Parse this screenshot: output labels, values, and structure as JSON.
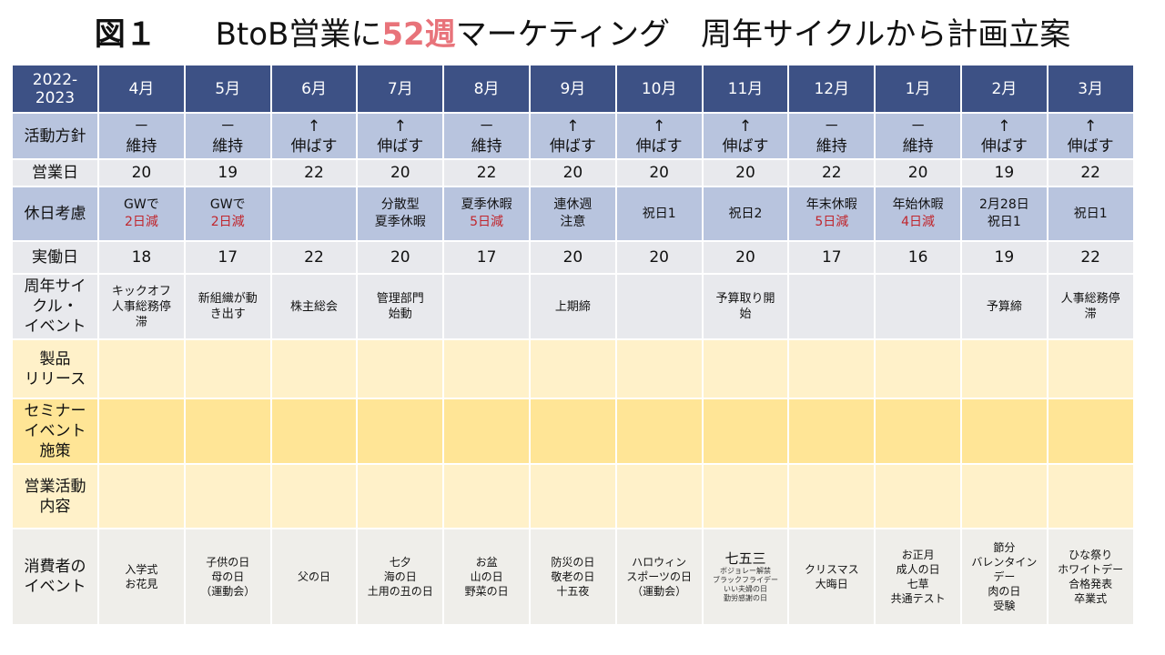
{
  "title": {
    "figure_label": "図１",
    "prefix": "BtoB営業に",
    "accent": "52週",
    "suffix": "マーケティング　周年サイクルから計画立案",
    "accent_color": "#e8737a"
  },
  "colors": {
    "header_bg": "#3d5185",
    "blue_row_bg": "#b8c4de",
    "gray_row_bg": "#e8e9ed",
    "light_yellow_bg": "#fff1c9",
    "yellow_bg": "#ffe596",
    "consumer_bg": "#efeeea",
    "red_text": "#c0262d"
  },
  "table": {
    "corner_label": [
      "2022-",
      "2023"
    ],
    "months": [
      "4月",
      "5月",
      "6月",
      "7月",
      "8月",
      "9月",
      "10月",
      "11月",
      "12月",
      "1月",
      "2月",
      "3月"
    ],
    "rows": {
      "policy": {
        "label": "活動方針",
        "cells": [
          {
            "symbol": "－",
            "text": "維持"
          },
          {
            "symbol": "－",
            "text": "維持"
          },
          {
            "symbol": "↑",
            "text": "伸ばす"
          },
          {
            "symbol": "↑",
            "text": "伸ばす"
          },
          {
            "symbol": "－",
            "text": "維持"
          },
          {
            "symbol": "↑",
            "text": "伸ばす"
          },
          {
            "symbol": "↑",
            "text": "伸ばす"
          },
          {
            "symbol": "↑",
            "text": "伸ばす"
          },
          {
            "symbol": "－",
            "text": "維持"
          },
          {
            "symbol": "－",
            "text": "維持"
          },
          {
            "symbol": "↑",
            "text": "伸ばす"
          },
          {
            "symbol": "↑",
            "text": "伸ばす"
          }
        ]
      },
      "business_days": {
        "label": "営業日",
        "values": [
          "20",
          "19",
          "22",
          "20",
          "22",
          "20",
          "20",
          "20",
          "22",
          "20",
          "19",
          "22"
        ]
      },
      "holidays": {
        "label": "休日考慮",
        "cells": [
          {
            "line1": "GWで",
            "red": "2日減"
          },
          {
            "line1": "GWで",
            "red": "2日減"
          },
          {
            "line1": "",
            "line2": ""
          },
          {
            "line1": "分散型",
            "line2": "夏季休暇"
          },
          {
            "line1": "夏季休暇",
            "red": "5日減"
          },
          {
            "line1": "連休週",
            "line2": "注意"
          },
          {
            "line1": "祝日1"
          },
          {
            "line1": "祝日2"
          },
          {
            "line1": "年末休暇",
            "red": "5日減"
          },
          {
            "line1": "年始休暇",
            "red": "4日減"
          },
          {
            "line1": "2月28日",
            "line2": "祝日1"
          },
          {
            "line1": "祝日1"
          }
        ]
      },
      "working_days": {
        "label": "実働日",
        "values": [
          "18",
          "17",
          "22",
          "20",
          "17",
          "20",
          "20",
          "20",
          "17",
          "16",
          "19",
          "22"
        ]
      },
      "annual_cycle": {
        "label_lines": [
          "周年サイ",
          "クル・",
          "イベント"
        ],
        "cells": [
          [
            "キックオフ",
            "人事総務停",
            "滞"
          ],
          [
            "新組織が動",
            "き出す"
          ],
          [
            "株主総会"
          ],
          [
            "管理部門",
            "始動"
          ],
          [],
          [
            "上期締"
          ],
          [],
          [
            "予算取り開",
            "始"
          ],
          [],
          [],
          [
            "予算締"
          ],
          [
            "人事総務停",
            "滞"
          ]
        ]
      },
      "product_release": {
        "label_lines": [
          "製品",
          "リリース"
        ],
        "cells": [
          "",
          "",
          "",
          "",
          "",
          "",
          "",
          "",
          "",
          "",
          "",
          ""
        ]
      },
      "seminar": {
        "label_lines": [
          "セミナー",
          "イベント",
          "施策"
        ],
        "cells": [
          "",
          "",
          "",
          "",
          "",
          "",
          "",
          "",
          "",
          "",
          "",
          ""
        ]
      },
      "sales_activity": {
        "label_lines": [
          "営業活動",
          "内容"
        ],
        "cells": [
          "",
          "",
          "",
          "",
          "",
          "",
          "",
          "",
          "",
          "",
          "",
          ""
        ]
      },
      "consumer_events": {
        "label_lines": [
          "消費者の",
          "イベント"
        ],
        "cells": [
          {
            "lines": [
              "入学式",
              "お花見"
            ]
          },
          {
            "lines": [
              "子供の日",
              "母の日",
              "（運動会）"
            ]
          },
          {
            "lines": [
              "父の日"
            ]
          },
          {
            "lines": [
              "七夕",
              "海の日",
              "土用の丑の日"
            ]
          },
          {
            "lines": [
              "お盆",
              "山の日",
              "野菜の日"
            ]
          },
          {
            "lines": [
              "防災の日",
              "敬老の日",
              "十五夜"
            ]
          },
          {
            "lines": [
              "ハロウィン",
              "スポーツの日",
              "（運動会）"
            ]
          },
          {
            "big": "七五三",
            "tiny": [
              "ボジョレー解禁",
              "ブラックフライデー",
              "いい夫婦の日",
              "勤労感謝の日"
            ]
          },
          {
            "lines": [
              "クリスマス",
              "大晦日"
            ]
          },
          {
            "lines": [
              "お正月",
              "成人の日",
              "七草",
              "共通テスト"
            ]
          },
          {
            "lines": [
              "節分",
              "バレンタイン",
              "デー",
              "肉の日",
              "受験"
            ]
          },
          {
            "lines": [
              "ひな祭り",
              "ホワイトデー",
              "合格発表",
              "卒業式"
            ]
          }
        ]
      }
    }
  }
}
